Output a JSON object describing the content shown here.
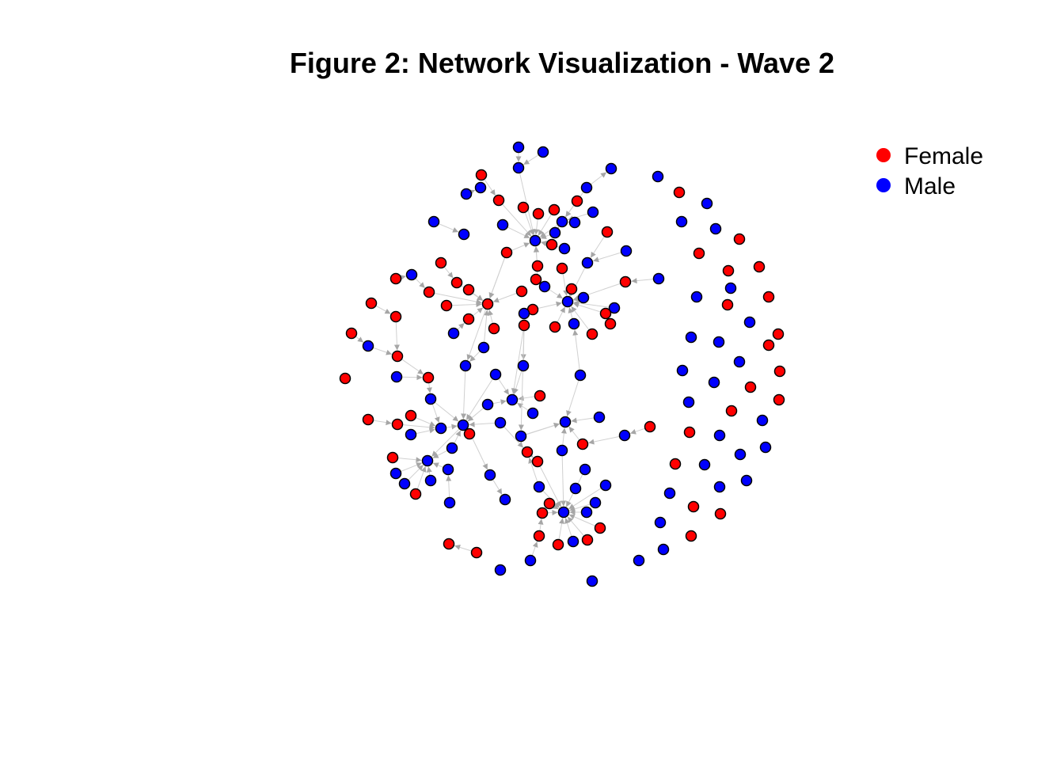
{
  "title": "Figure 2: Network Visualization - Wave 2",
  "legend": [
    {
      "label": "Female",
      "color": "#ff0000"
    },
    {
      "label": "Male",
      "color": "#0000ff"
    }
  ],
  "colors": {
    "edge": "#d0d0d0",
    "arrow": "#a6a6a6",
    "node_stroke": "#000000"
  }
}
